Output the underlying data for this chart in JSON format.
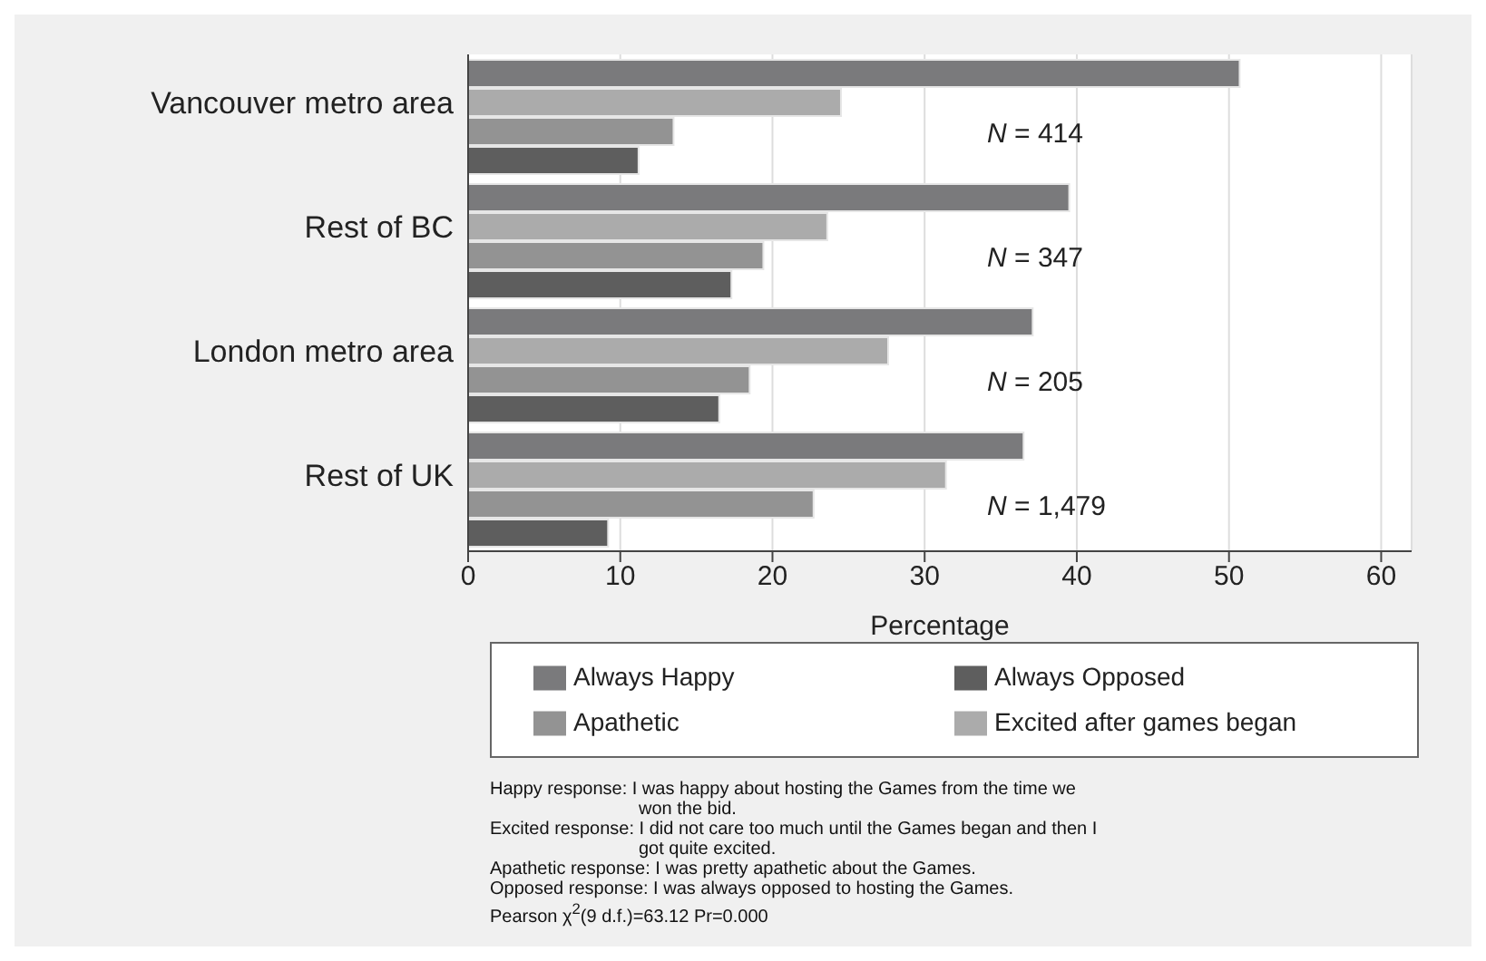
{
  "chart_data": {
    "type": "bar",
    "orientation": "horizontal",
    "xlabel": "Percentage",
    "categories": [
      "Vancouver metro area",
      "Rest of BC",
      "London metro area",
      "Rest of UK"
    ],
    "series": [
      {
        "name": "Always Happy",
        "color": "#7a7a7c",
        "values": [
          50.7,
          39.5,
          37.1,
          36.5
        ]
      },
      {
        "name": "Excited after games began",
        "color": "#ababab",
        "values": [
          24.5,
          23.6,
          27.6,
          31.4
        ]
      },
      {
        "name": "Apathetic",
        "color": "#939393",
        "values": [
          13.5,
          19.4,
          18.5,
          22.7
        ]
      },
      {
        "name": "Always Opposed",
        "color": "#5e5e5e",
        "values": [
          11.2,
          17.3,
          16.5,
          9.2
        ]
      }
    ],
    "xlim": [
      0,
      62
    ],
    "xticks": [
      0,
      10,
      20,
      30,
      40,
      50,
      60
    ],
    "grid": "x",
    "legend": "bottom",
    "annotations": [
      "N = 414",
      "N = 347",
      "N = 205",
      "N = 1,479",
      "Happy response: I was happy about hosting the Games from the time we won the bid.",
      "Excited response: I did not care too much until the Games began and then I got quite excited.",
      "Apathetic response: I was pretty apathetic about the Games.",
      "Opposed response: I was always opposed to hosting the Games.",
      "Pearson χ$^{2}$(9 d.f.)=63.12 Pr=0.000"
    ]
  }
}
